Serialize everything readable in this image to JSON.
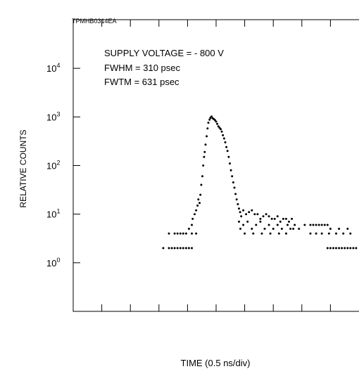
{
  "chart_data": {
    "type": "scatter",
    "code": "TPMHB0314EA",
    "xlabel": "TIME (0.5 ns/div)",
    "ylabel": "RELATIVE COUNTS",
    "ylog": true,
    "ylim": [
      0.1,
      100000
    ],
    "xlim": [
      0,
      10
    ],
    "y_ticks": [
      {
        "value": 1,
        "base": "10",
        "exp": "0"
      },
      {
        "value": 10,
        "base": "10",
        "exp": "1"
      },
      {
        "value": 100,
        "base": "10",
        "exp": "2"
      },
      {
        "value": 1000,
        "base": "10",
        "exp": "3"
      },
      {
        "value": 10000,
        "base": "10",
        "exp": "4"
      }
    ],
    "annotations": [
      "SUPPLY VOLTAGE = - 800 V",
      "FWHM = 310 psec",
      "FWTM = 631 psec"
    ],
    "grid": false,
    "series": [
      {
        "points": [
          [
            3.15,
            2
          ],
          [
            3.35,
            2
          ],
          [
            3.45,
            2
          ],
          [
            3.55,
            2
          ],
          [
            3.65,
            2
          ],
          [
            3.75,
            2
          ],
          [
            3.85,
            2
          ],
          [
            3.95,
            2
          ],
          [
            4.05,
            2
          ],
          [
            4.15,
            2
          ],
          [
            3.35,
            4
          ],
          [
            3.55,
            4
          ],
          [
            3.65,
            4
          ],
          [
            3.75,
            4
          ],
          [
            3.85,
            4
          ],
          [
            3.95,
            4
          ],
          [
            4.15,
            4
          ],
          [
            4.3,
            4
          ],
          [
            4.05,
            5
          ],
          [
            4.15,
            6
          ],
          [
            4.18,
            8
          ],
          [
            4.25,
            10
          ],
          [
            4.3,
            12
          ],
          [
            4.35,
            15
          ],
          [
            4.38,
            20
          ],
          [
            4.42,
            17
          ],
          [
            4.45,
            25
          ],
          [
            4.48,
            40
          ],
          [
            4.52,
            60
          ],
          [
            4.55,
            100
          ],
          [
            4.58,
            150
          ],
          [
            4.6,
            190
          ],
          [
            4.63,
            270
          ],
          [
            4.67,
            400
          ],
          [
            4.7,
            580
          ],
          [
            4.73,
            760
          ],
          [
            4.77,
            880
          ],
          [
            4.8,
            960
          ],
          [
            4.84,
            1020
          ],
          [
            4.88,
            940
          ],
          [
            4.92,
            900
          ],
          [
            4.96,
            860
          ],
          [
            5.0,
            800
          ],
          [
            5.04,
            720
          ],
          [
            5.08,
            640
          ],
          [
            5.12,
            600
          ],
          [
            5.16,
            560
          ],
          [
            5.2,
            500
          ],
          [
            5.24,
            420
          ],
          [
            5.28,
            360
          ],
          [
            5.32,
            300
          ],
          [
            5.36,
            240
          ],
          [
            5.4,
            200
          ],
          [
            5.44,
            150
          ],
          [
            5.48,
            110
          ],
          [
            5.52,
            80
          ],
          [
            5.56,
            60
          ],
          [
            5.6,
            45
          ],
          [
            5.64,
            35
          ],
          [
            5.68,
            26
          ],
          [
            5.72,
            20
          ],
          [
            5.76,
            16
          ],
          [
            5.8,
            13
          ],
          [
            5.84,
            11
          ],
          [
            5.88,
            9
          ],
          [
            5.95,
            12
          ],
          [
            6.05,
            10
          ],
          [
            6.15,
            11
          ],
          [
            6.25,
            12
          ],
          [
            6.35,
            10
          ],
          [
            6.45,
            10
          ],
          [
            6.55,
            8
          ],
          [
            6.65,
            9
          ],
          [
            6.75,
            10
          ],
          [
            6.85,
            9
          ],
          [
            6.95,
            8
          ],
          [
            7.05,
            8
          ],
          [
            7.15,
            9
          ],
          [
            7.25,
            7
          ],
          [
            7.35,
            8
          ],
          [
            7.45,
            8
          ],
          [
            7.55,
            7
          ],
          [
            7.65,
            8
          ],
          [
            5.8,
            7
          ],
          [
            5.95,
            6
          ],
          [
            6.1,
            7
          ],
          [
            6.25,
            5
          ],
          [
            6.4,
            6
          ],
          [
            6.55,
            7
          ],
          [
            6.7,
            5
          ],
          [
            6.85,
            6
          ],
          [
            7.0,
            5
          ],
          [
            7.15,
            6
          ],
          [
            7.3,
            5
          ],
          [
            7.5,
            6
          ],
          [
            7.7,
            5
          ],
          [
            5.85,
            5
          ],
          [
            6.0,
            4
          ],
          [
            6.3,
            4
          ],
          [
            6.6,
            4
          ],
          [
            6.9,
            4
          ],
          [
            7.2,
            4
          ],
          [
            7.45,
            4
          ],
          [
            7.6,
            5
          ],
          [
            7.75,
            6
          ],
          [
            7.9,
            5
          ],
          [
            8.1,
            6
          ],
          [
            8.3,
            6
          ],
          [
            8.4,
            6
          ],
          [
            8.5,
            6
          ],
          [
            8.6,
            6
          ],
          [
            8.7,
            6
          ],
          [
            8.8,
            6
          ],
          [
            8.9,
            6
          ],
          [
            8.7,
            4
          ],
          [
            8.95,
            4
          ],
          [
            9.2,
            4
          ],
          [
            9.45,
            4
          ],
          [
            9.7,
            4
          ],
          [
            8.9,
            2
          ],
          [
            9.0,
            2
          ],
          [
            9.1,
            2
          ],
          [
            9.2,
            2
          ],
          [
            9.3,
            2
          ],
          [
            9.4,
            2
          ],
          [
            9.5,
            2
          ],
          [
            9.6,
            2
          ],
          [
            9.7,
            2
          ],
          [
            9.8,
            2
          ],
          [
            9.9,
            2
          ],
          [
            8.3,
            4
          ],
          [
            8.5,
            4
          ],
          [
            9.0,
            5
          ],
          [
            9.3,
            5
          ],
          [
            9.6,
            5
          ]
        ]
      }
    ]
  }
}
